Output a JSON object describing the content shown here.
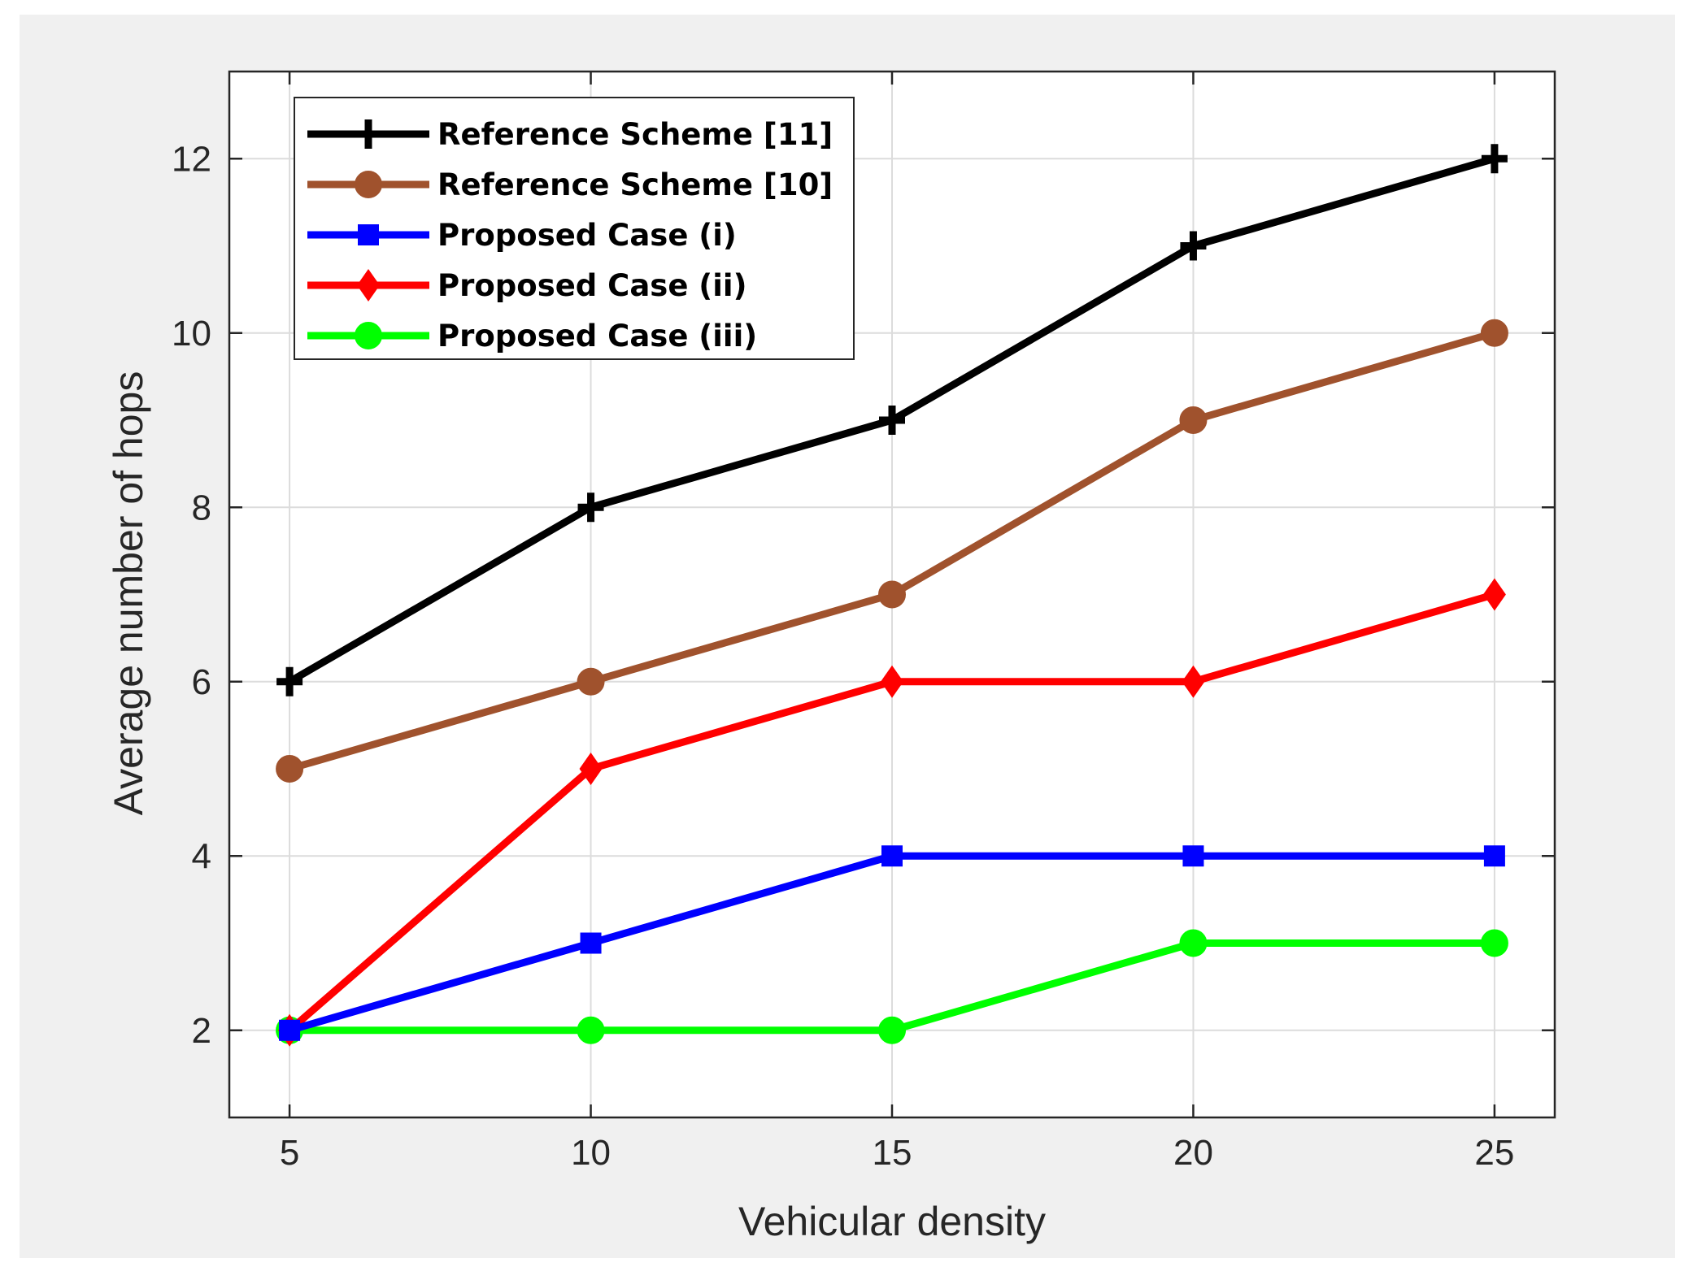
{
  "chart_data": {
    "type": "line",
    "title": "",
    "xlabel": "Vehicular density",
    "ylabel": "Average number of hops",
    "x": [
      5,
      10,
      15,
      20,
      25
    ],
    "xlim": [
      4,
      26
    ],
    "ylim": [
      1,
      13
    ],
    "xticks": [
      5,
      10,
      15,
      20,
      25
    ],
    "yticks": [
      2,
      4,
      6,
      8,
      10,
      12
    ],
    "grid": true,
    "legend_position": "top-left",
    "series": [
      {
        "name": "Reference Scheme [11]",
        "values": [
          6,
          8,
          9,
          11,
          12
        ],
        "color": "#000000",
        "marker": "plus"
      },
      {
        "name": "Reference Scheme [10]",
        "values": [
          5,
          6,
          7,
          9,
          10
        ],
        "color": "#a0522d",
        "marker": "circle"
      },
      {
        "name": "Proposed Case (i)",
        "values": [
          2,
          3,
          4,
          4,
          4
        ],
        "color": "#0000ff",
        "marker": "square"
      },
      {
        "name": "Proposed Case (ii)",
        "values": [
          2,
          5,
          6,
          6,
          7
        ],
        "color": "#ff0000",
        "marker": "diamond"
      },
      {
        "name": "Proposed Case (iii)",
        "values": [
          2,
          2,
          2,
          3,
          3
        ],
        "color": "#00ff00",
        "marker": "circle"
      }
    ],
    "background_color": "#f0f0f0",
    "axes_color": "#ffffff"
  }
}
